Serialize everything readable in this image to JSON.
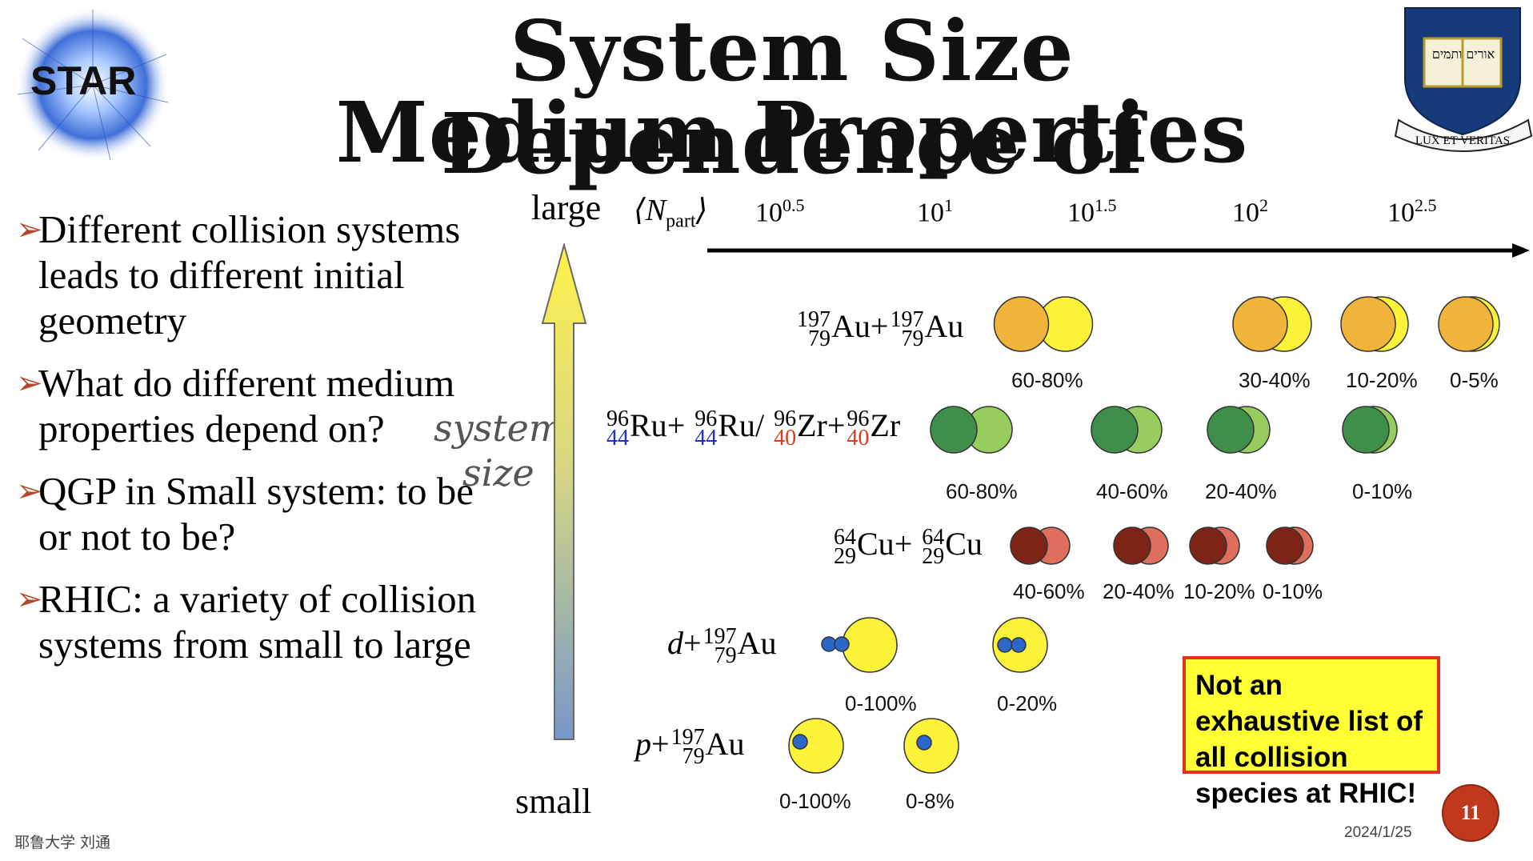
{
  "title_line1": "System Size Dependence of",
  "title_line2": "Medium Properties",
  "logos": {
    "left": "STAR",
    "right_motto": "LUX ET VERITAS",
    "right_hebrew": "אורים ותמים"
  },
  "bullets": [
    "Different collision systems leads to different initial geometry",
    "What do different medium properties depend on?",
    "QGP in Small system: to be or not to be?",
    "RHIC: a variety of collision systems from small to large"
  ],
  "axis": {
    "large": "large",
    "small": "small",
    "system_size_1": "system",
    "system_size_2": "size",
    "npart_label": "⟨N",
    "npart_sub": "part",
    "npart_close": "⟩",
    "ticks": [
      {
        "base": "10",
        "exp": "0.5"
      },
      {
        "base": "10",
        "exp": "1"
      },
      {
        "base": "10",
        "exp": "1.5"
      },
      {
        "base": "10",
        "exp": "2"
      },
      {
        "base": "10",
        "exp": "2.5"
      }
    ]
  },
  "systems": {
    "auau": {
      "a": "197",
      "z": "79",
      "el": "Au",
      "labels": [
        "60-80%",
        "30-40%",
        "10-20%",
        "0-5%"
      ]
    },
    "ruzr": {
      "ru_a": "96",
      "ru_z": "44",
      "ru": "Ru",
      "zr_a": "96",
      "zr_z": "40",
      "zr": "Zr",
      "labels": [
        "60-80%",
        "40-60%",
        "20-40%",
        "0-10%"
      ]
    },
    "cucu": {
      "a": "64",
      "z": "29",
      "el": "Cu",
      "labels": [
        "40-60%",
        "20-40%",
        "10-20%",
        "0-10%"
      ]
    },
    "dau": {
      "proj": "d",
      "a": "197",
      "z": "79",
      "el": "Au",
      "labels": [
        "0-100%",
        "0-20%"
      ]
    },
    "pau": {
      "proj": "p",
      "a": "197",
      "z": "79",
      "el": "Au",
      "labels": [
        "0-100%",
        "0-8%"
      ]
    }
  },
  "note": "Not an exhaustive list of all collision species at RHIC!",
  "footer": {
    "author": "耶鲁大学 刘通",
    "date": "2024/1/25",
    "page": "11"
  },
  "colors": {
    "auau_dark": "#f0b43a",
    "auau_light": "#fdf23a",
    "ru_dark": "#3f8f4b",
    "ru_light": "#97cc5e",
    "cu_dark": "#7e2416",
    "cu_light": "#df6f5c",
    "au_target": "#fdf23a",
    "nucleon": "#2b66c9",
    "ru_isotope": "#1f2fd0",
    "zr_isotope": "#e23a1f",
    "note_border": "#e2341d",
    "note_bg": "#ffff33"
  }
}
